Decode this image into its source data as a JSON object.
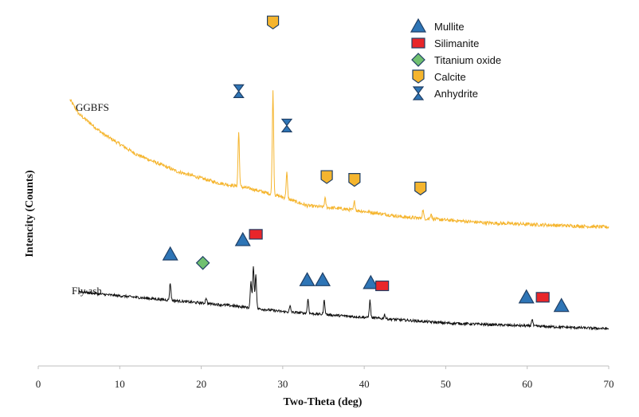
{
  "chart_data": {
    "type": "line",
    "xlabel": "Two-Theta (deg)",
    "ylabel": "Intencity (Counts)",
    "xlim": [
      0,
      70
    ],
    "xticks": [
      0,
      10,
      20,
      30,
      40,
      50,
      60,
      70
    ],
    "y_units": "arbitrary (counts, series vertically offset)",
    "ylim": [
      0,
      100
    ],
    "series": [
      {
        "name": "GGBFS",
        "color": "#F5B52E",
        "x_range": [
          3.9,
          70
        ],
        "baseline": [
          [
            3.9,
            93
          ],
          [
            5,
            88
          ],
          [
            8,
            81
          ],
          [
            12,
            74
          ],
          [
            17,
            68
          ],
          [
            22,
            64
          ],
          [
            26,
            62
          ],
          [
            30,
            59
          ],
          [
            33,
            56
          ],
          [
            37,
            55
          ],
          [
            40,
            54
          ],
          [
            45,
            52
          ],
          [
            50,
            51
          ],
          [
            55,
            50
          ],
          [
            60,
            49.5
          ],
          [
            65,
            49
          ],
          [
            70,
            48.5
          ]
        ],
        "peaks": [
          {
            "x": 24.6,
            "height": 19
          },
          {
            "x": 28.8,
            "height": 36
          },
          {
            "x": 30.5,
            "height": 9
          },
          {
            "x": 35.2,
            "height": 3
          },
          {
            "x": 38.8,
            "height": 3
          },
          {
            "x": 47.2,
            "height": 3
          },
          {
            "x": 48.2,
            "height": 2
          }
        ]
      },
      {
        "name": "Fly ash",
        "color": "#111111",
        "x_range": [
          5,
          70
        ],
        "baseline": [
          [
            5,
            26
          ],
          [
            8,
            25
          ],
          [
            12,
            24
          ],
          [
            16,
            23
          ],
          [
            20,
            22
          ],
          [
            24,
            21
          ],
          [
            27,
            20
          ],
          [
            30,
            19
          ],
          [
            35,
            18
          ],
          [
            40,
            17
          ],
          [
            50,
            15
          ],
          [
            60,
            14
          ],
          [
            70,
            13
          ]
        ],
        "peaks": [
          {
            "x": 16.2,
            "height": 6
          },
          {
            "x": 20.6,
            "height": 2
          },
          {
            "x": 26.1,
            "height": 9
          },
          {
            "x": 26.4,
            "height": 15
          },
          {
            "x": 26.7,
            "height": 12
          },
          {
            "x": 30.9,
            "height": 2
          },
          {
            "x": 33.1,
            "height": 5
          },
          {
            "x": 35.1,
            "height": 5
          },
          {
            "x": 40.7,
            "height": 6
          },
          {
            "x": 42.5,
            "height": 1.5
          },
          {
            "x": 60.6,
            "height": 2.5
          }
        ]
      }
    ],
    "legend": {
      "position": "top-right",
      "items": [
        {
          "label": "Mullite",
          "marker": "triangle",
          "color": "#2E75B6"
        },
        {
          "label": "Silimanite",
          "marker": "square",
          "color": "#E8262A"
        },
        {
          "label": "Titanium oxide",
          "marker": "diamond",
          "color": "#70C070"
        },
        {
          "label": "Calcite",
          "marker": "pentagon",
          "color": "#F5B52E"
        },
        {
          "label": "Anhydrite",
          "marker": "hourglass",
          "color": "#2E75B6"
        }
      ]
    },
    "series_labels": [
      "GGBFS",
      "Fly ash"
    ],
    "phase_markers": [
      {
        "phase": "Anhydrite",
        "x": 24.6,
        "y": 96
      },
      {
        "phase": "Calcite",
        "x": 28.8,
        "y": 120
      },
      {
        "phase": "Anhydrite",
        "x": 30.5,
        "y": 84
      },
      {
        "phase": "Calcite",
        "x": 35.4,
        "y": 66
      },
      {
        "phase": "Calcite",
        "x": 38.8,
        "y": 65
      },
      {
        "phase": "Calcite",
        "x": 46.9,
        "y": 62
      },
      {
        "phase": "Mullite",
        "x": 16.2,
        "y": 39
      },
      {
        "phase": "Titanium oxide",
        "x": 20.2,
        "y": 36
      },
      {
        "phase": "Mullite",
        "x": 25.1,
        "y": 44
      },
      {
        "phase": "Silimanite",
        "x": 26.7,
        "y": 46
      },
      {
        "phase": "Mullite",
        "x": 33.0,
        "y": 30
      },
      {
        "phase": "Mullite",
        "x": 34.9,
        "y": 30
      },
      {
        "phase": "Mullite",
        "x": 40.8,
        "y": 29
      },
      {
        "phase": "Silimanite",
        "x": 42.2,
        "y": 28
      },
      {
        "phase": "Mullite",
        "x": 59.9,
        "y": 24
      },
      {
        "phase": "Silimanite",
        "x": 61.9,
        "y": 24
      },
      {
        "phase": "Mullite",
        "x": 64.2,
        "y": 21
      }
    ]
  }
}
